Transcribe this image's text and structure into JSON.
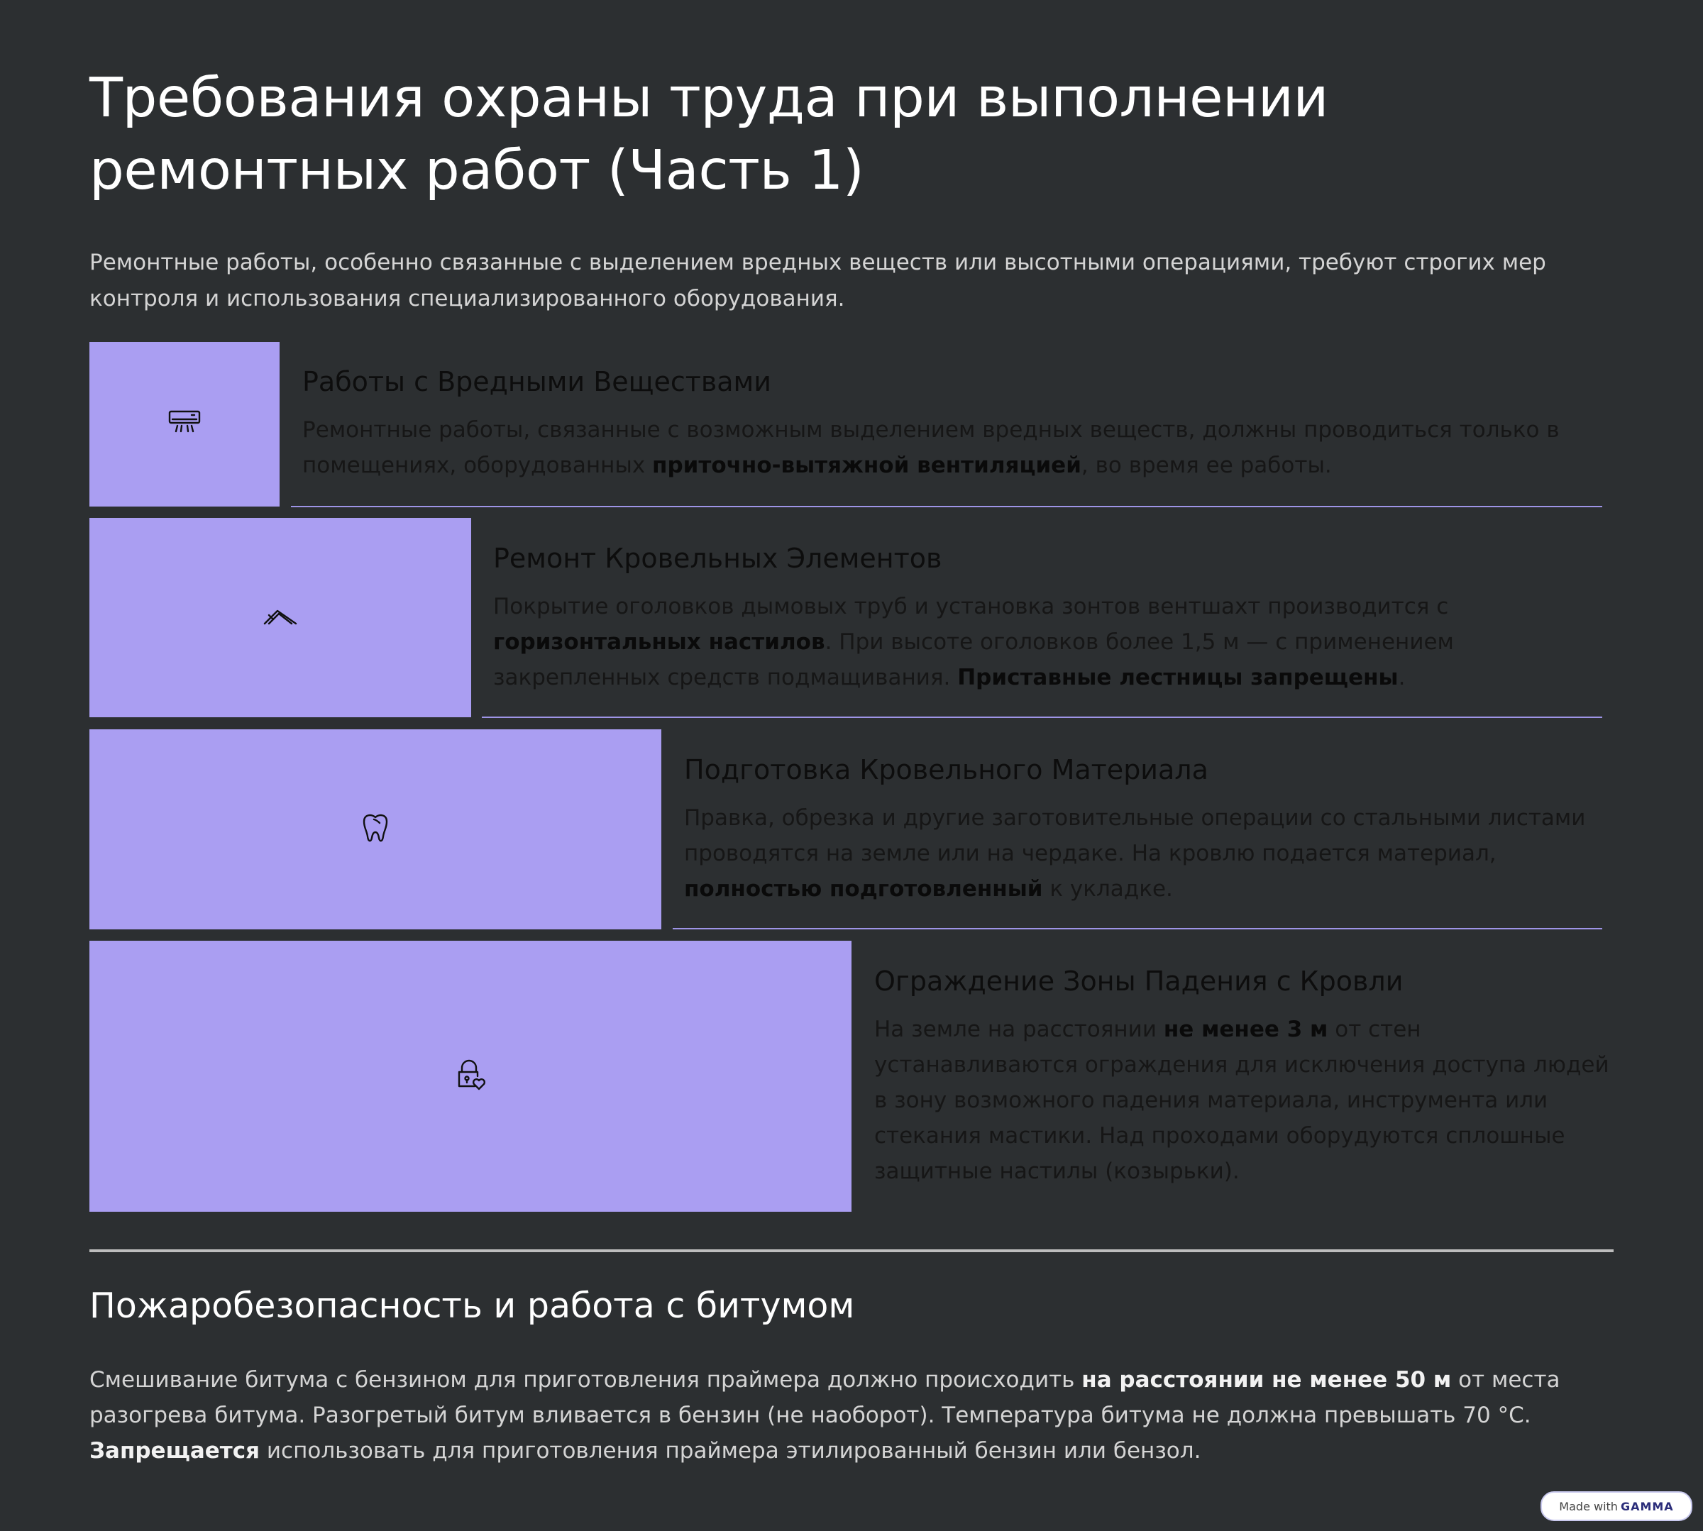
{
  "title": "Требования охраны труда при выполнении ремонтных работ (Часть 1)",
  "intro": "Ремонтные работы, особенно связанные с выделением вредных веществ или высотными операциями, требуют строгих мер контроля и использования специализированного оборудования.",
  "colors": {
    "background": "#2c2f31",
    "accent": "#aa9ef2"
  },
  "steps": [
    {
      "icon": "air-conditioner-icon",
      "title": "Работы с Вредными Веществами",
      "text": [
        {
          "t": "Ремонтные работы, связанные с возможным выделением вредных веществ, должны проводиться только в помещениях, оборудованных "
        },
        {
          "t": "приточно-вытяжной вентиляцией",
          "b": true
        },
        {
          "t": ", во время ее работы."
        }
      ]
    },
    {
      "icon": "roof-icon",
      "title": "Ремонт Кровельных Элементов",
      "text": [
        {
          "t": "Покрытие оголовков дымовых труб и установка зонтов вентшахт производится с "
        },
        {
          "t": "горизонтальных настилов",
          "b": true
        },
        {
          "t": ". При высоте оголовков более 1,5 м — с применением закрепленных средств подмащивания. "
        },
        {
          "t": "Приставные лестницы запрещены",
          "b": true
        },
        {
          "t": "."
        }
      ]
    },
    {
      "icon": "tooth-icon",
      "title": "Подготовка Кровельного Материала",
      "text": [
        {
          "t": "Правка, обрезка и другие заготовительные операции со стальными листами проводятся на земле или на чердаке. На кровлю подается материал, "
        },
        {
          "t": "полностью подготовленный",
          "b": true
        },
        {
          "t": " к укладке."
        }
      ]
    },
    {
      "icon": "lock-heart-icon",
      "title": "Ограждение Зоны Падения с Кровли",
      "text": [
        {
          "t": "На земле на расстоянии "
        },
        {
          "t": "не менее 3 м",
          "b": true
        },
        {
          "t": " от стен устанавливаются ограждения для исключения доступа людей в зону возможного падения материала, инструмента или стекания мастики. Над проходами оборудуются сплошные защитные настилы (козырьки)."
        }
      ]
    }
  ],
  "fire": {
    "heading": "Пожаробезопасность и работа с битумом",
    "text": [
      {
        "t": "Смешивание битума с бензином для приготовления праймера должно происходить "
      },
      {
        "t": "на расстоянии не менее 50 м",
        "b": true
      },
      {
        "t": " от места разогрева битума. Разогретый битум вливается в бензин (не наоборот). Температура битума не должна превышать 70 °C. "
      },
      {
        "t": "Запрещается",
        "b": true
      },
      {
        "t": " использовать для приготовления праймера этилированный бензин или бензол."
      }
    ]
  },
  "badge": {
    "prefix": "Made with",
    "brand": "GAMMA"
  }
}
